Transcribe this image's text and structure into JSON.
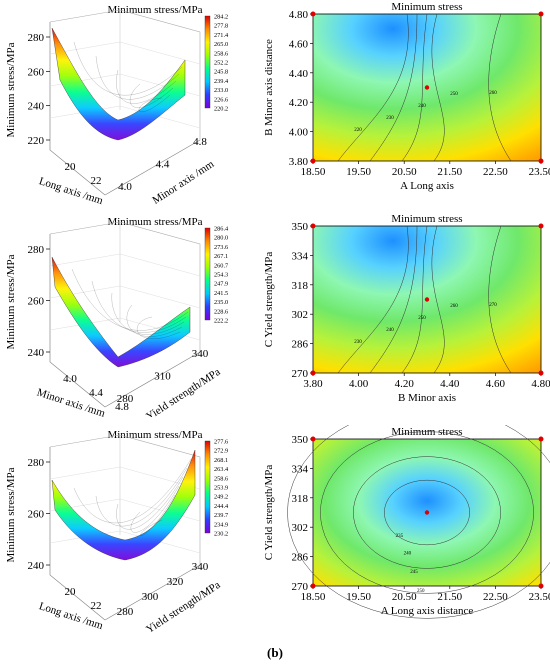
{
  "caption": "(b)",
  "colorbar_colors": [
    "#7a00d9",
    "#2f3cff",
    "#00c8ff",
    "#00ff8a",
    "#9bff00",
    "#fff200",
    "#ff8a00",
    "#e00000"
  ],
  "contour_colors": [
    "#1e90ff",
    "#57d1ff",
    "#8ef7b2",
    "#6fe86a",
    "#b7f23a",
    "#ffe000",
    "#ff9a00"
  ],
  "chart_data": [
    {
      "type": "surface3d",
      "title": "Minimum stress/MPa",
      "zlabel": "Minimum stress/MPa",
      "zticks": [
        "220",
        "240",
        "260",
        "280"
      ],
      "xlabel": "Long axis /mm",
      "xticks": [
        "20",
        "22"
      ],
      "ylabel": "Minor axis /mm",
      "yticks": [
        "4.0",
        "4.4",
        "4.8"
      ],
      "colorbar": [
        "284.2",
        "277.8",
        "271.4",
        "265.0",
        "258.6",
        "252.2",
        "245.8",
        "239.4",
        "233.0",
        "226.6",
        "220.2"
      ]
    },
    {
      "type": "contour",
      "title": "Minimum stress",
      "xlabel": "A  Long axis",
      "ylabel": "B  Minor axis distance",
      "xticks": [
        "18.50",
        "19.50",
        "20.50",
        "21.50",
        "22.50",
        "23.50"
      ],
      "yticks": [
        "3.80",
        "4.00",
        "4.20",
        "4.40",
        "4.60",
        "4.80"
      ],
      "xlim": [
        18.5,
        23.5
      ],
      "ylim": [
        3.8,
        4.8
      ],
      "center": [
        21.0,
        4.3
      ],
      "corners": [
        [
          18.5,
          3.8
        ],
        [
          18.5,
          4.8
        ],
        [
          23.5,
          3.8
        ],
        [
          23.5,
          4.8
        ]
      ],
      "contour_labels": [
        "220",
        "230",
        "240",
        "250",
        "260"
      ]
    },
    {
      "type": "surface3d",
      "title": "Minimum stress/MPa",
      "zlabel": "Minimum stress/MPa",
      "zticks": [
        "240",
        "260",
        "280"
      ],
      "xlabel": "Minor axis /mm",
      "xticks": [
        "4.0",
        "4.4",
        "4.8"
      ],
      "ylabel": "Yield strength/MPa",
      "yticks": [
        "280",
        "310",
        "340"
      ],
      "colorbar": [
        "286.4",
        "280.0",
        "273.6",
        "267.1",
        "260.7",
        "254.3",
        "247.9",
        "241.5",
        "235.0",
        "228.6",
        "222.2"
      ]
    },
    {
      "type": "contour",
      "title": "Minimum stress",
      "xlabel": "B  Minor axis",
      "ylabel": "C  Yield strength/MPa",
      "xticks": [
        "3.80",
        "4.00",
        "4.20",
        "4.40",
        "4.60",
        "4.80"
      ],
      "yticks": [
        "270",
        "286",
        "302",
        "318",
        "334",
        "350"
      ],
      "xlim": [
        3.8,
        4.8
      ],
      "ylim": [
        270,
        350
      ],
      "center": [
        4.3,
        310
      ],
      "corners": [
        [
          3.8,
          270
        ],
        [
          3.8,
          350
        ],
        [
          4.8,
          270
        ],
        [
          4.8,
          350
        ]
      ],
      "contour_labels": [
        "230",
        "240",
        "250",
        "260",
        "270"
      ]
    },
    {
      "type": "surface3d",
      "title": "Minimum stress/MPa",
      "zlabel": "Minimum stress/MPa",
      "zticks": [
        "240",
        "260",
        "280"
      ],
      "xlabel": "Long axis /mm",
      "xticks": [
        "20",
        "22"
      ],
      "ylabel": "Yield strength/MPa",
      "yticks": [
        "280",
        "300",
        "320",
        "340"
      ],
      "colorbar": [
        "277.6",
        "272.9",
        "268.1",
        "263.4",
        "258.6",
        "253.9",
        "249.2",
        "244.4",
        "239.7",
        "234.9",
        "230.2"
      ]
    },
    {
      "type": "contour",
      "title": "Minimum stress",
      "xlabel": "A  Long axis distance",
      "ylabel": "C  Yield strength/MPa",
      "xticks": [
        "18.50",
        "19.50",
        "20.50",
        "21.50",
        "22.50",
        "23.50"
      ],
      "yticks": [
        "270",
        "286",
        "302",
        "318",
        "334",
        "350"
      ],
      "xlim": [
        18.5,
        23.5
      ],
      "ylim": [
        270,
        350
      ],
      "center": [
        21.0,
        310
      ],
      "corners": [
        [
          18.5,
          270
        ],
        [
          18.5,
          350
        ],
        [
          23.5,
          270
        ],
        [
          23.5,
          350
        ]
      ],
      "contour_labels": [
        "235",
        "240",
        "245",
        "250",
        "255"
      ]
    }
  ]
}
